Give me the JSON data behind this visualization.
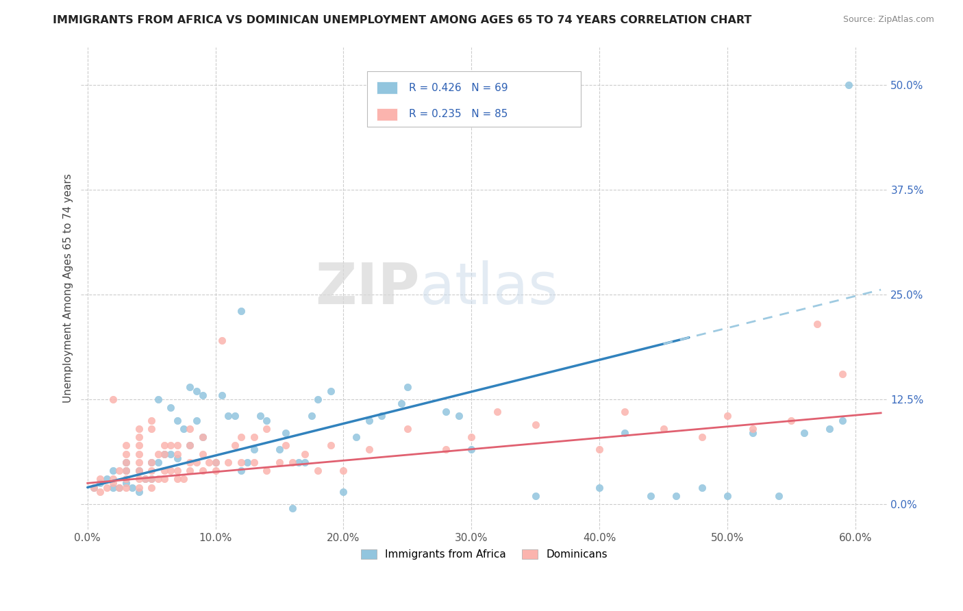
{
  "title": "IMMIGRANTS FROM AFRICA VS DOMINICAN UNEMPLOYMENT AMONG AGES 65 TO 74 YEARS CORRELATION CHART",
  "source": "Source: ZipAtlas.com",
  "ylabel": "Unemployment Among Ages 65 to 74 years",
  "xticklabels": [
    "0.0%",
    "10.0%",
    "20.0%",
    "30.0%",
    "40.0%",
    "50.0%",
    "60.0%"
  ],
  "xticks": [
    0.0,
    0.1,
    0.2,
    0.3,
    0.4,
    0.5,
    0.6
  ],
  "yticklabels": [
    "0.0%",
    "12.5%",
    "25.0%",
    "37.5%",
    "50.0%"
  ],
  "yticks": [
    0.0,
    0.125,
    0.25,
    0.375,
    0.5
  ],
  "xlim": [
    -0.005,
    0.625
  ],
  "ylim": [
    -0.03,
    0.545
  ],
  "africa_color": "#92c5de",
  "africa_line_color": "#3182bd",
  "africa_dash_color": "#9ecae1",
  "dominican_color": "#fbb4ae",
  "dominican_line_color": "#e06070",
  "africa_R": 0.426,
  "africa_N": 69,
  "dominican_R": 0.235,
  "dominican_N": 85,
  "legend_label_africa": "Immigrants from Africa",
  "legend_label_dominican": "Dominicans",
  "legend_text_color": "#2c5fb3",
  "watermark_zip": "ZIP",
  "watermark_atlas": "atlas",
  "africa_scatter_x": [
    0.005,
    0.01,
    0.015,
    0.02,
    0.02,
    0.025,
    0.03,
    0.03,
    0.03,
    0.035,
    0.04,
    0.04,
    0.045,
    0.05,
    0.05,
    0.055,
    0.055,
    0.06,
    0.065,
    0.065,
    0.07,
    0.07,
    0.075,
    0.08,
    0.08,
    0.085,
    0.085,
    0.09,
    0.09,
    0.1,
    0.105,
    0.11,
    0.115,
    0.12,
    0.12,
    0.125,
    0.13,
    0.135,
    0.14,
    0.15,
    0.155,
    0.16,
    0.165,
    0.17,
    0.175,
    0.18,
    0.19,
    0.2,
    0.21,
    0.22,
    0.23,
    0.245,
    0.25,
    0.28,
    0.29,
    0.3,
    0.35,
    0.4,
    0.42,
    0.44,
    0.46,
    0.48,
    0.5,
    0.52,
    0.54,
    0.56,
    0.58,
    0.59,
    0.595
  ],
  "africa_scatter_y": [
    0.02,
    0.025,
    0.03,
    0.02,
    0.04,
    0.02,
    0.025,
    0.04,
    0.05,
    0.02,
    0.015,
    0.04,
    0.03,
    0.03,
    0.05,
    0.05,
    0.125,
    0.06,
    0.06,
    0.115,
    0.055,
    0.1,
    0.09,
    0.07,
    0.14,
    0.1,
    0.135,
    0.08,
    0.13,
    0.05,
    0.13,
    0.105,
    0.105,
    0.23,
    0.04,
    0.05,
    0.065,
    0.105,
    0.1,
    0.065,
    0.085,
    -0.005,
    0.05,
    0.05,
    0.105,
    0.125,
    0.135,
    0.015,
    0.08,
    0.1,
    0.105,
    0.12,
    0.14,
    0.11,
    0.105,
    0.065,
    0.01,
    0.02,
    0.085,
    0.01,
    0.01,
    0.02,
    0.01,
    0.085,
    0.01,
    0.085,
    0.09,
    0.1,
    0.5
  ],
  "dominican_scatter_x": [
    0.005,
    0.01,
    0.01,
    0.015,
    0.02,
    0.02,
    0.02,
    0.025,
    0.025,
    0.03,
    0.03,
    0.03,
    0.03,
    0.03,
    0.03,
    0.04,
    0.04,
    0.04,
    0.04,
    0.04,
    0.04,
    0.04,
    0.04,
    0.045,
    0.05,
    0.05,
    0.05,
    0.05,
    0.05,
    0.05,
    0.055,
    0.055,
    0.06,
    0.06,
    0.06,
    0.06,
    0.065,
    0.065,
    0.07,
    0.07,
    0.07,
    0.07,
    0.075,
    0.08,
    0.08,
    0.08,
    0.08,
    0.085,
    0.09,
    0.09,
    0.09,
    0.095,
    0.1,
    0.1,
    0.105,
    0.11,
    0.115,
    0.12,
    0.12,
    0.13,
    0.13,
    0.14,
    0.14,
    0.15,
    0.155,
    0.16,
    0.17,
    0.18,
    0.19,
    0.2,
    0.22,
    0.25,
    0.28,
    0.3,
    0.32,
    0.35,
    0.4,
    0.42,
    0.45,
    0.48,
    0.5,
    0.52,
    0.55,
    0.57,
    0.59
  ],
  "dominican_scatter_y": [
    0.02,
    0.015,
    0.03,
    0.02,
    0.025,
    0.03,
    0.125,
    0.02,
    0.04,
    0.02,
    0.03,
    0.04,
    0.05,
    0.06,
    0.07,
    0.02,
    0.03,
    0.04,
    0.05,
    0.06,
    0.07,
    0.08,
    0.09,
    0.03,
    0.02,
    0.03,
    0.04,
    0.05,
    0.09,
    0.1,
    0.03,
    0.06,
    0.03,
    0.04,
    0.06,
    0.07,
    0.04,
    0.07,
    0.03,
    0.04,
    0.06,
    0.07,
    0.03,
    0.04,
    0.05,
    0.07,
    0.09,
    0.05,
    0.04,
    0.06,
    0.08,
    0.05,
    0.04,
    0.05,
    0.195,
    0.05,
    0.07,
    0.05,
    0.08,
    0.05,
    0.08,
    0.04,
    0.09,
    0.05,
    0.07,
    0.05,
    0.06,
    0.04,
    0.07,
    0.04,
    0.065,
    0.09,
    0.065,
    0.08,
    0.11,
    0.095,
    0.065,
    0.11,
    0.09,
    0.08,
    0.105,
    0.09,
    0.1,
    0.215,
    0.155
  ]
}
